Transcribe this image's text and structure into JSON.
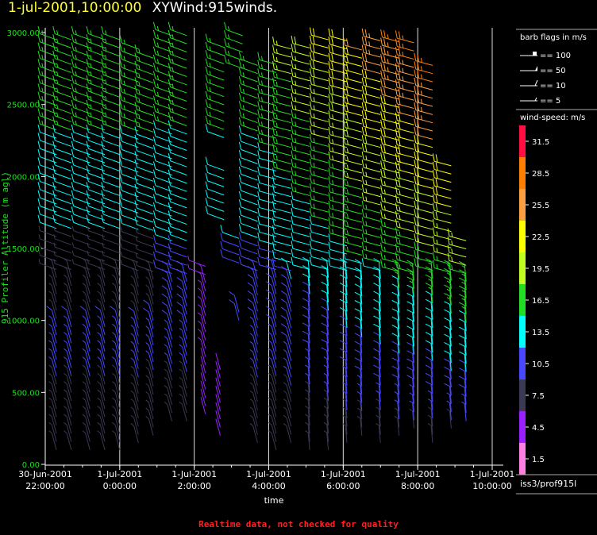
{
  "title": {
    "timestamp": "1-jul-2001,10:00:00",
    "plot_name": "XYWind:915winds."
  },
  "warning": "Realtime data, not checked for quality",
  "source": "iss3/prof915l",
  "legend": {
    "flags_title": "barb flags in m/s",
    "flags": [
      "== 100",
      "== 50",
      "== 10",
      "== 5"
    ],
    "speed_title": "wind-speed: m/s",
    "colorbar": [
      {
        "label": "31.5",
        "color": "#ff1040"
      },
      {
        "label": "28.5",
        "color": "#ff8000"
      },
      {
        "label": "25.5",
        "color": "#ffa040"
      },
      {
        "label": "22.5",
        "color": "#ffff00"
      },
      {
        "label": "19.5",
        "color": "#c0ff20"
      },
      {
        "label": "16.5",
        "color": "#22dd22"
      },
      {
        "label": "13.5",
        "color": "#00ffff"
      },
      {
        "label": "10.5",
        "color": "#4848ff"
      },
      {
        "label": "7.5",
        "color": "#3a3a55"
      },
      {
        "label": "4.5",
        "color": "#9a20ff"
      },
      {
        "label": "1.5",
        "color": "#ff80e0"
      }
    ]
  },
  "chart_data": {
    "type": "scatter",
    "ylabel": "915 Profiler Altitude (m agl)",
    "xlabel": "time",
    "ylim": [
      0,
      3000
    ],
    "yticks": [
      "0.00",
      "500.00",
      "1000.00",
      "1500.00",
      "2000.00",
      "2500.00",
      "3000.00"
    ],
    "xticks": [
      {
        "line1": "30-Jun-2001",
        "line2": "22:00:00"
      },
      {
        "line1": "1-Jul-2001",
        "line2": "0:00:00"
      },
      {
        "line1": "1-Jul-2001",
        "line2": "2:00:00"
      },
      {
        "line1": "1-Jul-2001",
        "line2": "4:00:00"
      },
      {
        "line1": "1-Jul-2001",
        "line2": "6:00:00"
      },
      {
        "line1": "1-Jul-2001",
        "line2": "8:00:00"
      },
      {
        "line1": "1-Jul-2001",
        "line2": "10:00:00"
      }
    ],
    "x_hours_range": [
      22,
      34
    ],
    "gridlines": "vertical at major ticks",
    "columns": [
      {
        "t": 22.3,
        "hmin": 100,
        "hmax": 2980,
        "gaps": []
      },
      {
        "t": 22.7,
        "hmin": 100,
        "hmax": 2980,
        "gaps": []
      },
      {
        "t": 23.2,
        "hmin": 100,
        "hmax": 2950,
        "gaps": []
      },
      {
        "t": 23.6,
        "hmin": 100,
        "hmax": 2970,
        "gaps": []
      },
      {
        "t": 24.0,
        "hmin": 100,
        "hmax": 2980,
        "gaps": []
      },
      {
        "t": 24.5,
        "hmin": 150,
        "hmax": 2900,
        "gaps": []
      },
      {
        "t": 24.9,
        "hmin": 200,
        "hmax": 2870,
        "gaps": []
      },
      {
        "t": 25.4,
        "hmin": 300,
        "hmax": 2980,
        "gaps": []
      },
      {
        "t": 25.8,
        "hmin": 300,
        "hmax": 2980,
        "gaps": []
      },
      {
        "t": 26.3,
        "hmin": 350,
        "hmax": 1400,
        "gaps": []
      },
      {
        "t": 26.7,
        "hmin": 200,
        "hmax": 700,
        "gaps": []
      },
      {
        "t": 26.8,
        "hmin": 1700,
        "hmax": 2950,
        "gaps": [
          [
            2050,
            2250
          ]
        ]
      },
      {
        "t": 27.2,
        "hmin": 1000,
        "hmax": 1600,
        "gaps": [
          [
            1100,
            1350
          ]
        ]
      },
      {
        "t": 27.3,
        "hmin": 2750,
        "hmax": 2980,
        "gaps": []
      },
      {
        "t": 27.7,
        "hmin": 150,
        "hmax": 2800,
        "gaps": []
      },
      {
        "t": 28.2,
        "hmin": 100,
        "hmax": 2780,
        "gaps": []
      },
      {
        "t": 28.6,
        "hmin": 150,
        "hmax": 2900,
        "gaps": []
      },
      {
        "t": 29.1,
        "hmin": 100,
        "hmax": 2940,
        "gaps": []
      },
      {
        "t": 29.6,
        "hmin": 100,
        "hmax": 2980,
        "gaps": []
      },
      {
        "t": 30.1,
        "hmin": 150,
        "hmax": 2980,
        "gaps": []
      },
      {
        "t": 30.5,
        "hmin": 200,
        "hmax": 2900,
        "gaps": []
      },
      {
        "t": 31.0,
        "hmin": 150,
        "hmax": 2980,
        "gaps": []
      },
      {
        "t": 31.5,
        "hmin": 200,
        "hmax": 2980,
        "gaps": []
      },
      {
        "t": 31.9,
        "hmin": 250,
        "hmax": 2980,
        "gaps": []
      },
      {
        "t": 32.4,
        "hmin": 150,
        "hmax": 2800,
        "gaps": []
      },
      {
        "t": 32.9,
        "hmin": 250,
        "hmax": 2100,
        "gaps": []
      },
      {
        "t": 33.3,
        "hmin": 300,
        "hmax": 1600,
        "gaps": []
      }
    ]
  }
}
